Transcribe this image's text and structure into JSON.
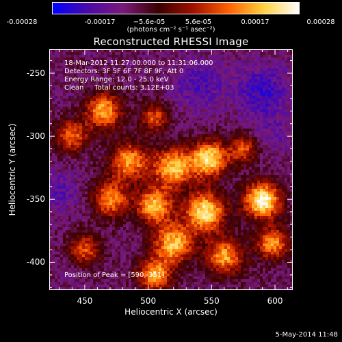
{
  "colorbar": {
    "ticks": [
      "-0.00028",
      "-0.00017",
      "−5.6e-05",
      "5.6e-05",
      "0.00017",
      "0.00028"
    ],
    "unit_label": "(photons cm⁻² s⁻¹ asec⁻²)",
    "colors": [
      "#0000ff",
      "#4a0aa8",
      "#7a1a7a",
      "#3a0000",
      "#a01000",
      "#ff6000",
      "#ffd040",
      "#ffffff"
    ]
  },
  "chart_data": {
    "type": "heatmap",
    "title": "Reconstructed RHESSI Image",
    "xlabel": "Heliocentric X (arcsec)",
    "ylabel": "Heliocentric Y (arcsec)",
    "xlim": [
      422,
      614
    ],
    "ylim": [
      -422,
      -231
    ],
    "x_ticks": [
      450,
      500,
      550,
      600
    ],
    "y_ticks": [
      -250,
      -300,
      -350,
      -400
    ],
    "value_range": [
      -0.00028,
      0.00028
    ],
    "peak": [
      590,
      -351
    ],
    "blobs": [
      {
        "x": 465,
        "y": -280,
        "v": 0.00018,
        "s": 10
      },
      {
        "x": 440,
        "y": -300,
        "v": 0.00012,
        "s": 9
      },
      {
        "x": 505,
        "y": -285,
        "v": 0.0001,
        "s": 8
      },
      {
        "x": 485,
        "y": -320,
        "v": 0.00016,
        "s": 11
      },
      {
        "x": 520,
        "y": -325,
        "v": 0.0002,
        "s": 11
      },
      {
        "x": 548,
        "y": -318,
        "v": 0.00024,
        "s": 10
      },
      {
        "x": 575,
        "y": -310,
        "v": 0.0001,
        "s": 8
      },
      {
        "x": 470,
        "y": -350,
        "v": 0.00015,
        "s": 10
      },
      {
        "x": 505,
        "y": -355,
        "v": 0.00019,
        "s": 10
      },
      {
        "x": 545,
        "y": -360,
        "v": 0.00024,
        "s": 11
      },
      {
        "x": 590,
        "y": -351,
        "v": 0.00028,
        "s": 10
      },
      {
        "x": 520,
        "y": -385,
        "v": 0.0002,
        "s": 11
      },
      {
        "x": 560,
        "y": -395,
        "v": 0.00017,
        "s": 10
      },
      {
        "x": 450,
        "y": -390,
        "v": 0.0001,
        "s": 9
      },
      {
        "x": 598,
        "y": -385,
        "v": 0.00016,
        "s": 9
      },
      {
        "x": 505,
        "y": -410,
        "v": 0.00018,
        "s": 9
      },
      {
        "x": 540,
        "y": -260,
        "v": -0.0002,
        "s": 14
      },
      {
        "x": 590,
        "y": -265,
        "v": -0.00022,
        "s": 15
      },
      {
        "x": 600,
        "y": -300,
        "v": -0.00015,
        "s": 12
      },
      {
        "x": 430,
        "y": -345,
        "v": -0.00018,
        "s": 12
      },
      {
        "x": 440,
        "y": -410,
        "v": -0.00012,
        "s": 10
      },
      {
        "x": 580,
        "y": -410,
        "v": -8e-05,
        "s": 9
      }
    ]
  },
  "annotations": {
    "time_range": "18-Mar-2012 11:27:00.000 to 11:31:06.000",
    "detectors": "Detectors: 3F 5F 6F 7F 8F 9F, Att 0",
    "energy_range": "Energy Range: 12.0 - 25.0 keV",
    "method_counts": "Clean     Total counts: 3.12E+03",
    "peak_position": "Position of Peak = [590,-351]"
  },
  "footer": {
    "date": "5-May-2014 11:48"
  }
}
